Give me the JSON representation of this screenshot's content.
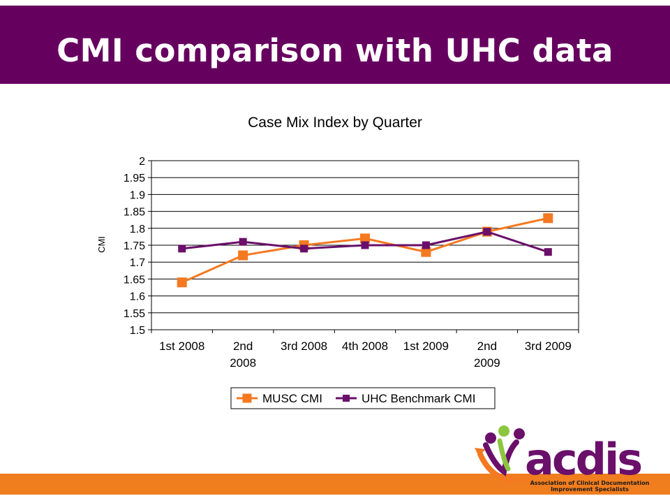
{
  "slide": {
    "title": "CMI comparison with UHC data",
    "header_color": "#66005f",
    "footer_bar_color": "#f07d1e"
  },
  "logo": {
    "wordmark": "acdis",
    "tagline_line1": "Association of Clinical Documentation",
    "tagline_line2": "Improvement Specialists"
  },
  "chart_data": {
    "type": "line",
    "title": "Case Mix Index by Quarter",
    "xlabel": "",
    "ylabel": "CMI",
    "ylim": [
      1.5,
      2
    ],
    "ytick_step": 0.05,
    "ytick_labels": [
      "1.5",
      "1.55",
      "1.6",
      "1.65",
      "1.7",
      "1.75",
      "1.8",
      "1.85",
      "1.9",
      "1.95",
      "2"
    ],
    "grid": true,
    "legend_position": "bottom",
    "categories": [
      [
        "1st 2008"
      ],
      [
        "2nd",
        "2008"
      ],
      [
        "3rd 2008"
      ],
      [
        "4th 2008"
      ],
      [
        "1st 2009"
      ],
      [
        "2nd",
        "2009"
      ],
      [
        "3rd 2009"
      ]
    ],
    "series": [
      {
        "name": "MUSC CMI",
        "color": "#f47920",
        "values": [
          1.64,
          1.72,
          1.75,
          1.77,
          1.73,
          1.79,
          1.83
        ]
      },
      {
        "name": "UHC Benchmark CMI",
        "color": "#6a0f6a",
        "values": [
          1.74,
          1.76,
          1.74,
          1.75,
          1.75,
          1.79,
          1.73
        ]
      }
    ]
  }
}
